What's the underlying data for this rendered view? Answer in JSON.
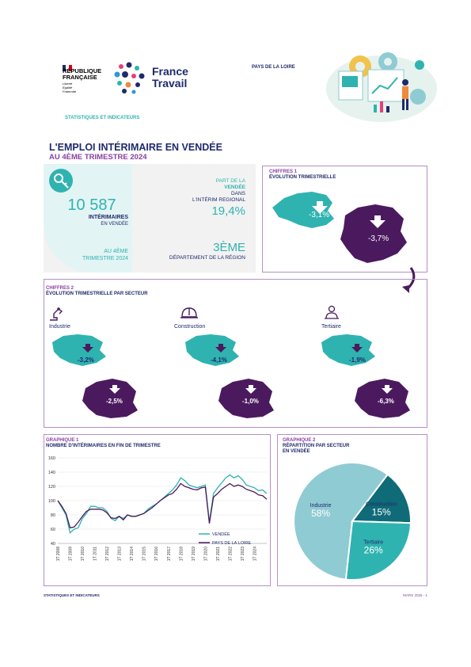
{
  "header": {
    "republique_line1": "RÉPUBLIQUE",
    "republique_line2": "FRANÇAISE",
    "motto_1": "Liberté",
    "motto_2": "Égalité",
    "motto_3": "Fraternité",
    "brand_line1": "France",
    "brand_line2": "Travail",
    "region": "PAYS DE LA LOIRE",
    "section_label": "STATISTIQUES ET INDICATEURS"
  },
  "title": {
    "line1": "L'EMPLOI INTÉRIMAIRE EN VENDÉE",
    "line2": "AU 4ÈME TRIMESTRE 2024"
  },
  "kpi": {
    "count": "10 587",
    "count_label": "INTÉRIMAIRES",
    "count_sub": "EN VENDÉE",
    "period_line1": "AU 4ÈME",
    "period_line2": "TRIMESTRE 2024",
    "share_line1": "PART DE LA",
    "share_line2": "VENDÉE",
    "share_line3": "DANS",
    "share_line4": "L'INTÉRIM REGIONAL",
    "share_value": "19,4%",
    "rank_value": "3ÈME",
    "rank_label": "DÉPARTEMENT DE LA RÉGION"
  },
  "chiffres1": {
    "label": "CHIFFRES 1",
    "title": "ÉVOLUTION TRIMESTRIELLE",
    "vendee": "-3,1%",
    "region": "-3,7%"
  },
  "chiffres2": {
    "label": "CHIFFRES 2",
    "title": "ÉVOLUTION TRIMESTRIELLE PAR SECTEUR",
    "sectors": [
      {
        "name": "Industrie",
        "vendee": "-3,2%",
        "region": "-2,5%"
      },
      {
        "name": "Construction",
        "vendee": "-4,1%",
        "region": "-1,0%"
      },
      {
        "name": "Tertiaire",
        "vendee": "-1,9%",
        "region": "-6,3%"
      }
    ]
  },
  "graph1": {
    "label": "GRAPHIQUE 1",
    "title": "NOMBRE D'INTÉRIMAIRES EN FIN DE TRIMESTRE"
  },
  "graph2": {
    "label": "GRAPHIQUE 2",
    "title_line1": "RÉPARTITION PAR SECTEUR",
    "title_line2": "EN VENDÉE"
  },
  "footer": {
    "left": "STATISTIQUES ET INDICATEURS",
    "right": "MARS 2025 - 1"
  },
  "colors": {
    "navy": "#1f2a6b",
    "teal": "#2fb3b0",
    "purple": "#4b1a5e",
    "lightteal": "#8fcbd3",
    "darkteal": "#0f6b78"
  },
  "chart_data": [
    {
      "type": "line",
      "title": "NOMBRE D'INTÉRIMAIRES EN FIN DE TRIMESTRE",
      "ylim": [
        40,
        160
      ],
      "yticks": [
        40,
        60,
        80,
        100,
        120,
        140,
        160
      ],
      "x_tick_labels": [
        "1T 2008",
        "1T 2009",
        "1T 2010",
        "1T 2011",
        "1T 2012",
        "1T 2013",
        "1T 2014",
        "1T 2015",
        "1T 2016",
        "1T 2017",
        "1T 2018",
        "1T 2019",
        "1T 2020",
        "1T 2021",
        "1T 2022",
        "1T 2023",
        "1T 2024"
      ],
      "legend_position": "bottom-right",
      "series": [
        {
          "name": "VENDÉE",
          "color": "#2fb3b0",
          "values": [
            100,
            90,
            80,
            55,
            60,
            62,
            75,
            82,
            92,
            92,
            90,
            90,
            85,
            75,
            72,
            78,
            75,
            80,
            78,
            78,
            80,
            82,
            88,
            92,
            95,
            100,
            105,
            110,
            115,
            122,
            132,
            128,
            122,
            120,
            118,
            120,
            122,
            70,
            110,
            118,
            125,
            132,
            136,
            132,
            135,
            130,
            122,
            120,
            118,
            114,
            115,
            110
          ]
        },
        {
          "name": "PAYS DE LA LOIRE",
          "color": "#4b1a5e",
          "values": [
            100,
            92,
            82,
            62,
            63,
            70,
            78,
            85,
            88,
            88,
            88,
            87,
            83,
            76,
            75,
            78,
            73,
            80,
            78,
            78,
            80,
            82,
            86,
            90,
            95,
            100,
            104,
            108,
            110,
            116,
            124,
            120,
            118,
            116,
            115,
            118,
            119,
            68,
            105,
            110,
            116,
            120,
            124,
            120,
            122,
            120,
            116,
            114,
            112,
            108,
            107,
            102
          ]
        }
      ]
    },
    {
      "type": "pie",
      "title": "RÉPARTITION PAR SECTEUR EN VENDÉE",
      "slices": [
        {
          "label": "Industrie",
          "value": 58,
          "display": "58%",
          "color": "#8fcbd3"
        },
        {
          "label": "Construction",
          "value": 15,
          "display": "15%",
          "color": "#0f6b78"
        },
        {
          "label": "Tertiaire",
          "value": 26,
          "display": "26%",
          "color": "#2fb3b0"
        }
      ]
    }
  ]
}
